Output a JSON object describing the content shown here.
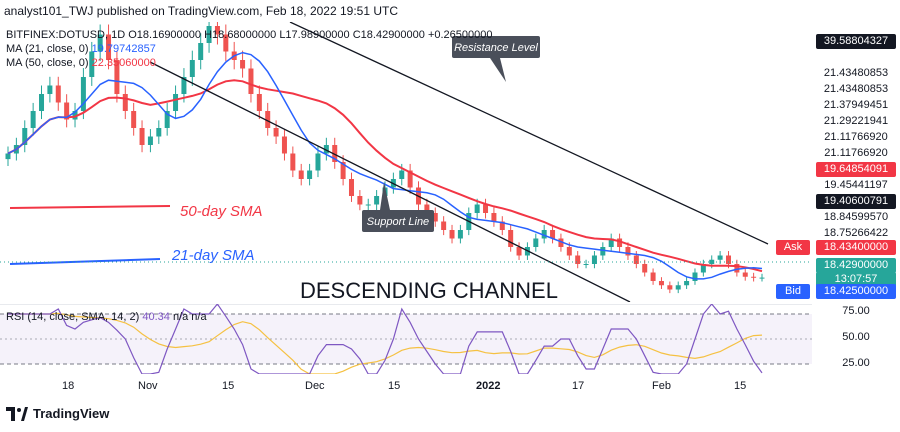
{
  "header": {
    "published_text": "analyst101_TWJ published on TradingView.com, Feb 18, 2022 19:51 UTC"
  },
  "legend": {
    "symbol_line": "BITFINEX:DOTUSD, 1D  O18.16900000 H18.68000000 L17.98900000 C18.42900000 +0.26500000",
    "ma21_label": "MA (21, close, 0)",
    "ma21_value": "19.79742857",
    "ma50_label": "MA (50, close, 0)",
    "ma50_value": "22.35060000",
    "rsi_label": "RSI (14, close, SMA, 14, 2)",
    "rsi_value": "40.34",
    "rsi_extra": "n/a  n/a"
  },
  "annotations": {
    "resistance": "Resistance Level",
    "support": "Support Line",
    "sma50": "50-day SMA",
    "sma21": "21-day SMA",
    "channel": "DESCENDING CHANNEL"
  },
  "price_axis": {
    "labels": [
      "39.58804327",
      "21.43480853",
      "21.43480853",
      "21.37949451",
      "21.29221941",
      "21.11766920",
      "21.11766920",
      "19.64854091",
      "19.45441197",
      "19.40600791",
      "18.84599570",
      "18.75266422"
    ],
    "ask_label": "Ask",
    "ask_value": "18.43400000",
    "last_value": "18.42900000",
    "countdown": "13:07:57",
    "bid_label": "Bid",
    "bid_value": "18.42500000",
    "rsi_ticks": [
      "75.00",
      "50.00",
      "25.00"
    ]
  },
  "time_axis": [
    "18",
    "Nov",
    "15",
    "Dec",
    "15",
    "2022",
    "17",
    "Feb",
    "15"
  ],
  "footer": {
    "brand": "TradingView"
  },
  "colors": {
    "ma21": "#2962ff",
    "ma50": "#f23645",
    "up": "#26a69a",
    "down": "#ef5350",
    "channel": "#131722",
    "rsi": "#7e57c2",
    "rsi_ma": "#f5c142"
  },
  "chart_data": {
    "type": "candlestick",
    "symbol": "BITFINEX:DOTUSD",
    "timeframe": "1D",
    "last_ohlc": {
      "open": 18.169,
      "high": 18.68,
      "low": 17.989,
      "close": 18.429
    },
    "closes_approx": [
      33,
      34,
      36,
      38,
      40,
      41,
      39,
      37,
      38,
      42,
      45,
      47,
      44,
      40,
      38,
      36,
      34,
      35,
      36,
      38,
      40,
      42,
      44,
      46,
      48,
      47,
      45,
      44,
      43,
      40,
      38,
      36,
      35,
      33,
      31,
      30,
      31,
      33,
      34,
      32,
      30,
      28,
      27,
      27,
      28,
      29,
      30,
      31,
      29,
      27,
      26,
      25,
      24,
      23,
      24,
      26,
      27,
      26,
      25,
      24,
      22,
      21,
      22,
      23,
      24,
      23,
      22,
      21,
      20,
      20,
      21,
      22,
      23,
      22,
      21,
      20,
      19,
      18,
      17.5,
      17,
      17.5,
      18,
      19,
      20,
      20.5,
      21,
      20,
      19,
      18.5,
      18.4,
      18.4
    ],
    "ma21": {
      "last": 19.79742857
    },
    "ma50": {
      "last": 22.3506
    },
    "rsi": {
      "last": 40.34,
      "levels": [
        25,
        50,
        75
      ]
    }
  }
}
